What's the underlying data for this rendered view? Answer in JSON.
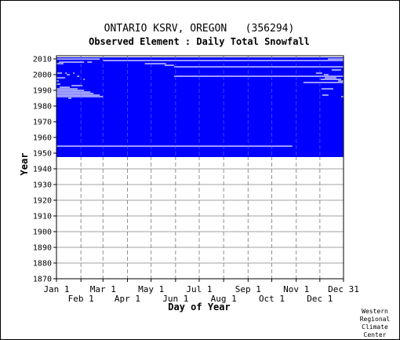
{
  "chart_data": {
    "type": "heatmap",
    "title": "ONTARIO KSRV, OREGON   (356294)",
    "subtitle": "Observed Element : Daily Total Snowfall",
    "xlabel": "Day of Year",
    "ylabel": "Year",
    "ylim": [
      1870,
      2012
    ],
    "xlim": [
      1,
      365
    ],
    "yticks": [
      1870,
      1880,
      1890,
      1900,
      1910,
      1920,
      1930,
      1940,
      1950,
      1960,
      1970,
      1980,
      1990,
      2000,
      2010
    ],
    "x_ticks_top_row": [
      {
        "day": 1,
        "label": "Jan 1"
      },
      {
        "day": 60,
        "label": "Mar 1"
      },
      {
        "day": 121,
        "label": "May 1"
      },
      {
        "day": 182,
        "label": "Jul 1"
      },
      {
        "day": 244,
        "label": "Sep 1"
      },
      {
        "day": 305,
        "label": "Nov 1"
      },
      {
        "day": 365,
        "label": "Dec 31"
      }
    ],
    "x_ticks_bottom_row": [
      {
        "day": 32,
        "label": "Feb 1"
      },
      {
        "day": 91,
        "label": "Apr 1"
      },
      {
        "day": 152,
        "label": "Jun 1"
      },
      {
        "day": 213,
        "label": "Aug 1"
      },
      {
        "day": 274,
        "label": "Oct 1"
      },
      {
        "day": 335,
        "label": "Dec 1"
      }
    ],
    "month_gridlines": [
      32,
      60,
      91,
      121,
      152,
      182,
      213,
      244,
      274,
      305,
      335
    ],
    "grid": true,
    "data_fill_color": "#0000ff",
    "data_coverage": {
      "start_year": 1947.5,
      "end_year": 2011,
      "day_start": 1,
      "day_end": 365
    },
    "missing_gaps": [
      {
        "year": 2010,
        "day_start": 1,
        "day_end": 56
      },
      {
        "year": 2010,
        "day_start": 345,
        "day_end": 365
      },
      {
        "year": 2009,
        "day_start": 60,
        "day_end": 365
      },
      {
        "year": 2008,
        "day_start": 4,
        "day_end": 36
      },
      {
        "year": 2008,
        "day_start": 40,
        "day_end": 46
      },
      {
        "year": 2007,
        "day_start": 1,
        "day_end": 10
      },
      {
        "year": 2007,
        "day_start": 113,
        "day_end": 140
      },
      {
        "year": 2006,
        "day_start": 138,
        "day_end": 150
      },
      {
        "year": 2005,
        "day_start": 150,
        "day_end": 365
      },
      {
        "year": 2003,
        "day_start": 350,
        "day_end": 362
      },
      {
        "year": 2001,
        "day_start": 2,
        "day_end": 8
      },
      {
        "year": 2001,
        "day_start": 12,
        "day_end": 14
      },
      {
        "year": 2001,
        "day_start": 22,
        "day_end": 24
      },
      {
        "year": 2001,
        "day_start": 330,
        "day_end": 338
      },
      {
        "year": 2000,
        "day_start": 14,
        "day_end": 18
      },
      {
        "year": 2000,
        "day_start": 340,
        "day_end": 346
      },
      {
        "year": 1999,
        "day_start": 27,
        "day_end": 30
      },
      {
        "year": 1999,
        "day_start": 150,
        "day_end": 365
      },
      {
        "year": 1998,
        "day_start": 1,
        "day_end": 12
      },
      {
        "year": 1998,
        "day_start": 341,
        "day_end": 356
      },
      {
        "year": 1997,
        "day_start": 35,
        "day_end": 37
      },
      {
        "year": 1997,
        "day_start": 336,
        "day_end": 362
      },
      {
        "year": 1996,
        "day_start": 1,
        "day_end": 4
      },
      {
        "year": 1996,
        "day_start": 358,
        "day_end": 365
      },
      {
        "year": 1995,
        "day_start": 314,
        "day_end": 365
      },
      {
        "year": 1994,
        "day_start": 1,
        "day_end": 6
      },
      {
        "year": 1993,
        "day_start": 20,
        "day_end": 34
      },
      {
        "year": 1992,
        "day_start": 5,
        "day_end": 18
      },
      {
        "year": 1991,
        "day_start": 1,
        "day_end": 28
      },
      {
        "year": 1991,
        "day_start": 337,
        "day_end": 352
      },
      {
        "year": 1990,
        "day_start": 1,
        "day_end": 36
      },
      {
        "year": 1989,
        "day_start": 1,
        "day_end": 44
      },
      {
        "year": 1988,
        "day_start": 1,
        "day_end": 48
      },
      {
        "year": 1987,
        "day_start": 1,
        "day_end": 56
      },
      {
        "year": 1987,
        "day_start": 338,
        "day_end": 346
      },
      {
        "year": 1986,
        "day_start": 1,
        "day_end": 60
      },
      {
        "year": 1986,
        "day_start": 362,
        "day_end": 365
      },
      {
        "year": 1985,
        "day_start": 16,
        "day_end": 20
      },
      {
        "year": 1954.5,
        "day_start": 1,
        "day_end": 300
      }
    ],
    "footer_text": [
      "Western",
      "Regional",
      "Climate",
      "Center"
    ]
  }
}
